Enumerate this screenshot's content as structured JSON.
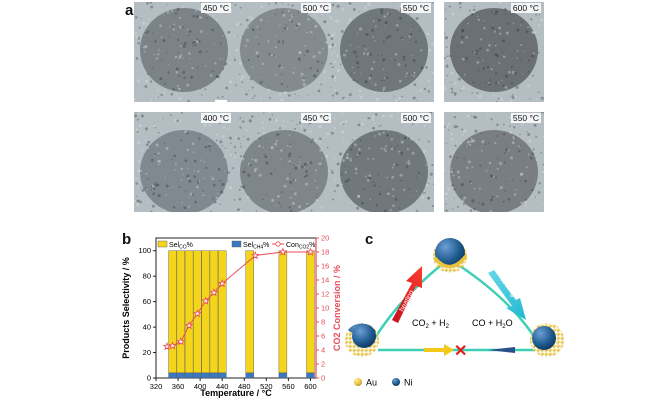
{
  "panel_a": {
    "letter": "a",
    "row1": [
      "450 °C",
      "500 °C",
      "550 °C",
      "600 °C"
    ],
    "row2": [
      "400 °C",
      "450 °C",
      "500 °C",
      "550 °C"
    ]
  },
  "panel_b": {
    "letter": "b"
  },
  "panel_c": {
    "letter": "c",
    "arrow_left_label": "heating",
    "arrow_right_label": "cooling",
    "reaction_left": "CO",
    "reaction_left_sub": "2",
    "reaction_left_rest": " + H",
    "reaction_left_sub2": "2",
    "reaction_right": "CO + H",
    "reaction_right_sub": "2",
    "reaction_right_rest": "O",
    "blocked_mark": "✕",
    "legend": [
      {
        "label": "Au",
        "color": "#e8c23a"
      },
      {
        "label": "Ni",
        "color": "#2f5f9a"
      }
    ]
  },
  "chart_data": {
    "type": "bar",
    "xlabel": "Temperature / °C",
    "ylabel_left": "Products Selectivity / %",
    "ylabel_right": "CO2 Conversion / %",
    "xlim": [
      320,
      610
    ],
    "ylim_left": [
      0,
      110
    ],
    "ylim_right": [
      0,
      20
    ],
    "xticks": [
      320,
      360,
      400,
      440,
      480,
      520,
      560,
      600
    ],
    "xtick_labels": [
      "320",
      "360",
      "400",
      "440",
      "480",
      "520",
      "560",
      "600"
    ],
    "yticks_left": [
      0,
      20,
      40,
      60,
      80,
      100
    ],
    "yticks_right": [
      0,
      2,
      4,
      6,
      8,
      10,
      12,
      14,
      16,
      18,
      20
    ],
    "temperatures": [
      350,
      365,
      380,
      395,
      410,
      425,
      440,
      490,
      550,
      600
    ],
    "sel_co": [
      96,
      96,
      96,
      96,
      96,
      96,
      96,
      96,
      96,
      96
    ],
    "sel_ch4": [
      4,
      4,
      4,
      4,
      4,
      4,
      4,
      4,
      4,
      4
    ],
    "conv_temps": [
      340,
      350,
      365,
      380,
      395,
      410,
      425,
      440,
      500,
      550,
      600
    ],
    "conversion": [
      4.5,
      4.6,
      5.2,
      7.5,
      9.2,
      11.0,
      12.2,
      13.5,
      17.5,
      18.0,
      18.0
    ],
    "legend": [
      {
        "name": "Sel",
        "sub": "CO",
        "suffix": "%",
        "color": "#f4d51c"
      },
      {
        "name": "Sel",
        "sub": "CH4",
        "suffix": "%",
        "color": "#3a78c2"
      },
      {
        "name": "Con",
        "sub": "CO2",
        "suffix": "%",
        "color": "#e64b57"
      }
    ],
    "legend_placement": "top",
    "grid": false
  }
}
